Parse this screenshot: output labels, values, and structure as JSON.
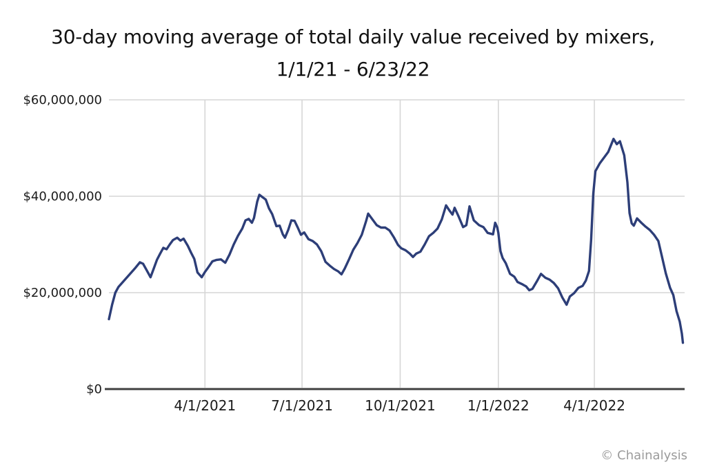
{
  "title": {
    "line1": "30-day moving average of total daily value received by mixers,",
    "line2": "1/1/21 - 6/23/22"
  },
  "footer": {
    "watermark": "© Chainalysis"
  },
  "colors": {
    "line": "#2d3e78",
    "grid": "#d6d6d6",
    "axis": "#404040",
    "tick_text": "#1b1b1b",
    "watermark": "#9b9b9b"
  },
  "chart_data": {
    "type": "line",
    "title": "30-day moving average of total daily value received by mixers, 1/1/21 - 6/23/22",
    "unit": "USD millions",
    "xlim": [
      "1/1/2021",
      "6/23/2022"
    ],
    "ylim": [
      0,
      60
    ],
    "grid": true,
    "legend": false,
    "y_ticks": [
      {
        "label": "$60,000,000",
        "value": 60
      },
      {
        "label": "$40,000,000",
        "value": 40
      },
      {
        "label": "$20,000,000",
        "value": 20
      },
      {
        "label": "$0",
        "value": 0
      }
    ],
    "x_ticks": [
      "4/1/2021",
      "7/1/2021",
      "10/1/2021",
      "1/1/2022",
      "4/1/2022"
    ],
    "series": [
      {
        "color": "#2d3e78",
        "points": [
          [
            "1/1/2021",
            14.5
          ],
          [
            "1/4/2021",
            17.5
          ],
          [
            "1/7/2021",
            20.0
          ],
          [
            "1/10/2021",
            21.2
          ],
          [
            "1/14/2021",
            22.2
          ],
          [
            "1/18/2021",
            23.2
          ],
          [
            "1/22/2021",
            24.2
          ],
          [
            "1/26/2021",
            25.2
          ],
          [
            "1/30/2021",
            26.3
          ],
          [
            "2/2/2021",
            26.0
          ],
          [
            "2/5/2021",
            24.8
          ],
          [
            "2/9/2021",
            23.2
          ],
          [
            "2/12/2021",
            25.0
          ],
          [
            "2/15/2021",
            26.8
          ],
          [
            "2/18/2021",
            28.1
          ],
          [
            "2/21/2021",
            29.3
          ],
          [
            "2/24/2021",
            29.0
          ],
          [
            "2/27/2021",
            30.0
          ],
          [
            "3/2/2021",
            30.9
          ],
          [
            "3/6/2021",
            31.4
          ],
          [
            "3/9/2021",
            30.8
          ],
          [
            "3/12/2021",
            31.2
          ],
          [
            "3/16/2021",
            29.7
          ],
          [
            "3/19/2021",
            28.3
          ],
          [
            "3/22/2021",
            27.0
          ],
          [
            "3/25/2021",
            24.2
          ],
          [
            "3/29/2021",
            23.2
          ],
          [
            "4/1/2021",
            24.3
          ],
          [
            "4/4/2021",
            25.2
          ],
          [
            "4/8/2021",
            26.5
          ],
          [
            "4/12/2021",
            26.8
          ],
          [
            "4/16/2021",
            26.9
          ],
          [
            "4/20/2021",
            26.2
          ],
          [
            "4/24/2021",
            27.9
          ],
          [
            "4/28/2021",
            30.0
          ],
          [
            "5/2/2021",
            31.8
          ],
          [
            "5/6/2021",
            33.3
          ],
          [
            "5/9/2021",
            35.0
          ],
          [
            "5/12/2021",
            35.3
          ],
          [
            "5/15/2021",
            34.5
          ],
          [
            "5/17/2021",
            35.5
          ],
          [
            "5/20/2021",
            38.9
          ],
          [
            "5/22/2021",
            40.3
          ],
          [
            "5/25/2021",
            39.8
          ],
          [
            "5/28/2021",
            39.3
          ],
          [
            "5/31/2021",
            37.5
          ],
          [
            "6/3/2021",
            36.3
          ],
          [
            "6/7/2021",
            33.8
          ],
          [
            "6/10/2021",
            33.9
          ],
          [
            "6/13/2021",
            32.1
          ],
          [
            "6/15/2021",
            31.4
          ],
          [
            "6/18/2021",
            33.0
          ],
          [
            "6/21/2021",
            35.0
          ],
          [
            "6/24/2021",
            34.9
          ],
          [
            "6/27/2021",
            33.5
          ],
          [
            "6/30/2021",
            32.0
          ],
          [
            "7/3/2021",
            32.5
          ],
          [
            "7/7/2021",
            31.1
          ],
          [
            "7/11/2021",
            30.7
          ],
          [
            "7/15/2021",
            30.0
          ],
          [
            "7/19/2021",
            28.6
          ],
          [
            "7/23/2021",
            26.4
          ],
          [
            "7/27/2021",
            25.6
          ],
          [
            "7/31/2021",
            24.9
          ],
          [
            "8/4/2021",
            24.4
          ],
          [
            "8/7/2021",
            23.8
          ],
          [
            "8/10/2021",
            25.0
          ],
          [
            "8/14/2021",
            26.9
          ],
          [
            "8/18/2021",
            28.9
          ],
          [
            "8/22/2021",
            30.3
          ],
          [
            "8/26/2021",
            32.0
          ],
          [
            "8/30/2021",
            34.8
          ],
          [
            "9/1/2021",
            36.4
          ],
          [
            "9/5/2021",
            35.2
          ],
          [
            "9/9/2021",
            34.0
          ],
          [
            "9/13/2021",
            33.5
          ],
          [
            "9/17/2021",
            33.5
          ],
          [
            "9/21/2021",
            32.9
          ],
          [
            "9/25/2021",
            31.5
          ],
          [
            "9/29/2021",
            29.9
          ],
          [
            "10/2/2021",
            29.2
          ],
          [
            "10/6/2021",
            28.8
          ],
          [
            "10/10/2021",
            28.1
          ],
          [
            "10/13/2021",
            27.4
          ],
          [
            "10/16/2021",
            28.1
          ],
          [
            "10/20/2021",
            28.5
          ],
          [
            "10/24/2021",
            30.0
          ],
          [
            "10/28/2021",
            31.7
          ],
          [
            "11/1/2021",
            32.4
          ],
          [
            "11/5/2021",
            33.3
          ],
          [
            "11/9/2021",
            35.2
          ],
          [
            "11/13/2021",
            38.1
          ],
          [
            "11/16/2021",
            37.1
          ],
          [
            "11/19/2021",
            36.2
          ],
          [
            "11/21/2021",
            37.6
          ],
          [
            "11/25/2021",
            35.7
          ],
          [
            "11/29/2021",
            33.6
          ],
          [
            "12/2/2021",
            34.0
          ],
          [
            "12/5/2021",
            37.9
          ],
          [
            "12/9/2021",
            35.0
          ],
          [
            "12/14/2021",
            34.0
          ],
          [
            "12/18/2021",
            33.6
          ],
          [
            "12/22/2021",
            32.4
          ],
          [
            "12/27/2021",
            32.1
          ],
          [
            "12/29/2021",
            34.5
          ],
          [
            "12/31/2021",
            33.5
          ],
          [
            "1/1/2022",
            32.4
          ],
          [
            "1/3/2022",
            28.6
          ],
          [
            "1/5/2022",
            27.2
          ],
          [
            "1/8/2022",
            26.1
          ],
          [
            "1/12/2022",
            23.9
          ],
          [
            "1/16/2022",
            23.3
          ],
          [
            "1/19/2022",
            22.2
          ],
          [
            "1/23/2022",
            21.8
          ],
          [
            "1/27/2022",
            21.3
          ],
          [
            "1/30/2022",
            20.5
          ],
          [
            "2/2/2022",
            20.8
          ],
          [
            "2/6/2022",
            22.3
          ],
          [
            "2/10/2022",
            23.9
          ],
          [
            "2/14/2022",
            23.1
          ],
          [
            "2/18/2022",
            22.7
          ],
          [
            "2/22/2022",
            22.0
          ],
          [
            "2/26/2022",
            20.9
          ],
          [
            "3/2/2022",
            19.0
          ],
          [
            "3/6/2022",
            17.5
          ],
          [
            "3/9/2022",
            19.2
          ],
          [
            "3/13/2022",
            19.9
          ],
          [
            "3/17/2022",
            21.0
          ],
          [
            "3/21/2022",
            21.4
          ],
          [
            "3/24/2022",
            22.5
          ],
          [
            "3/27/2022",
            24.5
          ],
          [
            "3/29/2022",
            31.0
          ],
          [
            "3/31/2022",
            40.5
          ],
          [
            "4/2/2022",
            45.2
          ],
          [
            "4/6/2022",
            46.8
          ],
          [
            "4/10/2022",
            48.0
          ],
          [
            "4/14/2022",
            49.2
          ],
          [
            "4/19/2022",
            51.9
          ],
          [
            "4/22/2022",
            50.8
          ],
          [
            "4/25/2022",
            51.4
          ],
          [
            "4/29/2022",
            48.5
          ],
          [
            "5/2/2022",
            42.9
          ],
          [
            "5/4/2022",
            36.5
          ],
          [
            "5/6/2022",
            34.4
          ],
          [
            "5/8/2022",
            33.9
          ],
          [
            "5/11/2022",
            35.4
          ],
          [
            "5/15/2022",
            34.5
          ],
          [
            "5/19/2022",
            33.7
          ],
          [
            "5/23/2022",
            33.0
          ],
          [
            "5/27/2022",
            32.0
          ],
          [
            "5/31/2022",
            30.7
          ],
          [
            "6/3/2022",
            27.8
          ],
          [
            "6/7/2022",
            24.0
          ],
          [
            "6/11/2022",
            21.0
          ],
          [
            "6/14/2022",
            19.5
          ],
          [
            "6/17/2022",
            16.2
          ],
          [
            "6/20/2022",
            14.0
          ],
          [
            "6/22/2022",
            11.5
          ],
          [
            "6/23/2022",
            9.6
          ]
        ]
      }
    ]
  }
}
